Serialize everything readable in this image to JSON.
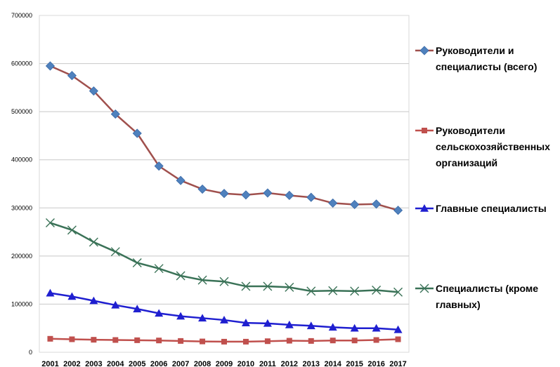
{
  "chart_data": {
    "type": "line",
    "title": "",
    "xlabel": "",
    "ylabel": "",
    "x": [
      "2001",
      "2002",
      "2003",
      "2004",
      "2005",
      "2006",
      "2007",
      "2008",
      "2009",
      "2010",
      "2011",
      "2012",
      "2013",
      "2014",
      "2015",
      "2016",
      "2017"
    ],
    "ylim": [
      0,
      700000
    ],
    "yticks": [
      "0",
      "100000",
      "200000",
      "300000",
      "400000",
      "500000",
      "600000",
      "700000"
    ],
    "grid": "horizontal",
    "legend_position": "right",
    "series": [
      {
        "name_lines": [
          "Руководители и",
          "специалисты (всего)"
        ],
        "color": "#A0504D",
        "marker_color": "#4F81BD",
        "marker": "diamond",
        "values": [
          595000,
          575000,
          543000,
          495000,
          455000,
          387000,
          357000,
          339000,
          330000,
          327000,
          331000,
          326000,
          322000,
          310000,
          307000,
          308000,
          295000
        ]
      },
      {
        "name_lines": [
          "Руководители",
          "сельскохозяйственных",
          "организаций"
        ],
        "color": "#C0504D",
        "marker_color": "#C0504D",
        "marker": "square",
        "values": [
          28000,
          27000,
          26000,
          25500,
          25000,
          24500,
          23500,
          22500,
          22000,
          22000,
          23000,
          24000,
          23500,
          24500,
          24500,
          25500,
          27000
        ]
      },
      {
        "name_lines": [
          "Главные  специалисты"
        ],
        "color": "#1F1FD0",
        "marker_color": "#1F1FD0",
        "marker": "triangle",
        "values": [
          123000,
          116000,
          107000,
          98000,
          90000,
          81000,
          75000,
          71000,
          67000,
          61000,
          60000,
          57000,
          55000,
          52000,
          50000,
          50000,
          47000
        ]
      },
      {
        "name_lines": [
          "Специалисты (кроме",
          "главных)"
        ],
        "color": "#3A7257",
        "marker_color": "#3A7257",
        "marker": "x",
        "values": [
          269000,
          254000,
          229000,
          209000,
          186000,
          174000,
          159000,
          150000,
          147000,
          137000,
          137000,
          135000,
          127000,
          128000,
          127000,
          129000,
          125000
        ]
      }
    ]
  }
}
